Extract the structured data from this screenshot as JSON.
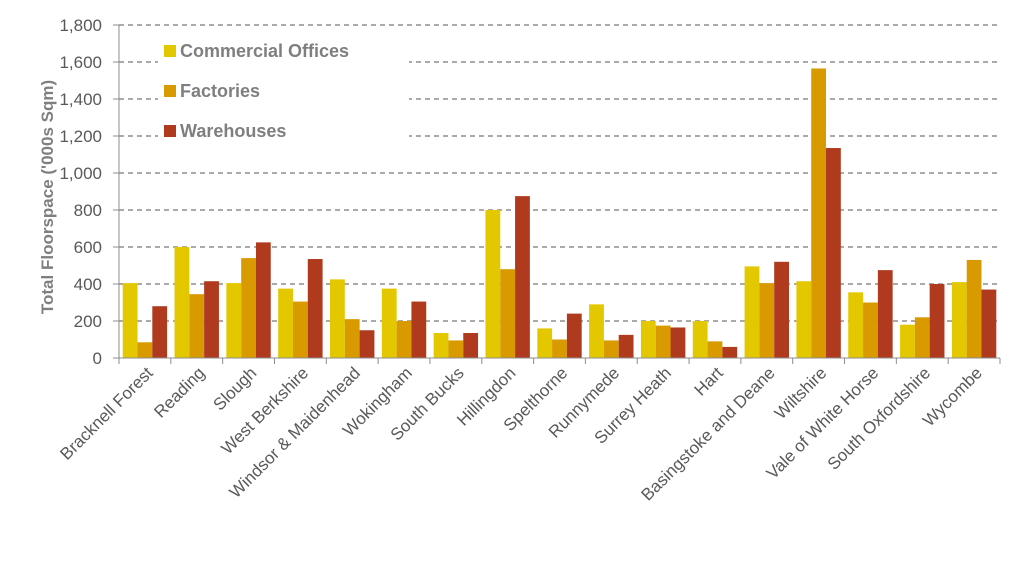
{
  "chart_data": {
    "type": "bar",
    "ylabel": "Total Floorspace ('000s Sqm)",
    "ylim": [
      0,
      1800
    ],
    "yticks": [
      0,
      200,
      400,
      600,
      800,
      1000,
      1200,
      1400,
      1600,
      1800
    ],
    "ytick_labels": [
      "0",
      "200",
      "400",
      "600",
      "800",
      "1,000",
      "1,200",
      "1,400",
      "1,600",
      "1,800"
    ],
    "grid": true,
    "legend_position": "top-left",
    "categories": [
      "Bracknell Forest",
      "Reading",
      "Slough",
      "West Berkshire",
      "Windsor & Maidenhead",
      "Wokingham",
      "South Bucks",
      "Hillingdon",
      "Spelthorne",
      "Runnymede",
      "Surrey Heath",
      "Hart",
      "Basingstoke and Deane",
      "Wiltshire",
      "Vale of White Horse",
      "South Oxfordshire",
      "Wycombe"
    ],
    "series": [
      {
        "name": "Commercial Offices",
        "color": "#e3c800",
        "values": [
          405,
          600,
          405,
          375,
          425,
          375,
          135,
          800,
          160,
          290,
          200,
          200,
          495,
          415,
          355,
          180,
          410
        ]
      },
      {
        "name": "Factories",
        "color": "#d99a00",
        "values": [
          85,
          345,
          540,
          305,
          210,
          200,
          95,
          480,
          100,
          95,
          175,
          90,
          405,
          1565,
          300,
          220,
          530
        ]
      },
      {
        "name": "Warehouses",
        "color": "#b03a1e",
        "values": [
          280,
          415,
          625,
          535,
          150,
          305,
          135,
          875,
          240,
          125,
          165,
          60,
          520,
          1135,
          475,
          400,
          370
        ]
      }
    ]
  }
}
